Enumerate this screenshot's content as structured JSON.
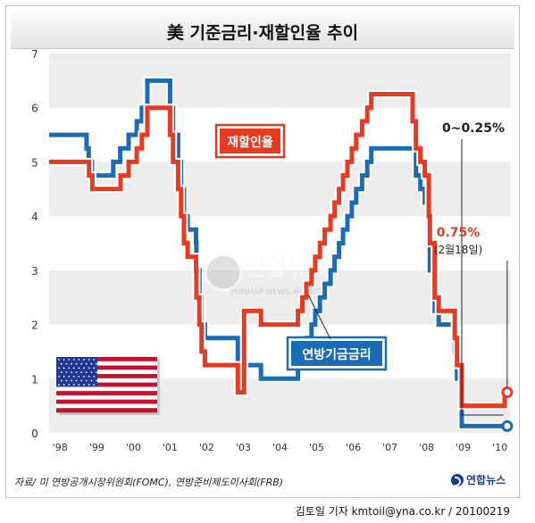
{
  "title": "美 기준금리·재할인율 추이",
  "chart_data": {
    "type": "line",
    "x_unit": "year",
    "xlim": [
      1997.7,
      2010.3
    ],
    "ylim": [
      0,
      7
    ],
    "grid": true,
    "x_tick_labels": [
      {
        "x": 1998,
        "label": "'98"
      },
      {
        "x": 1999,
        "label": "'99"
      },
      {
        "x": 2000,
        "label": "'00"
      },
      {
        "x": 2001,
        "label": "'01"
      },
      {
        "x": 2002,
        "label": "'02"
      },
      {
        "x": 2003,
        "label": "'03"
      },
      {
        "x": 2004,
        "label": "'04"
      },
      {
        "x": 2005,
        "label": "'05"
      },
      {
        "x": 2006,
        "label": "'06"
      },
      {
        "x": 2007,
        "label": "'07"
      },
      {
        "x": 2008,
        "label": "'08"
      },
      {
        "x": 2009,
        "label": "'09"
      },
      {
        "x": 2010,
        "label": "'10"
      }
    ],
    "y_ticks": [
      0,
      1,
      2,
      3,
      4,
      5,
      6,
      7
    ],
    "series": [
      {
        "name": "연방기금금리",
        "color": "#1c6bb5",
        "points": [
          [
            1997.7,
            5.5
          ],
          [
            1998.72,
            5.25
          ],
          [
            1998.78,
            5.0
          ],
          [
            1998.87,
            4.75
          ],
          [
            1999.45,
            5.0
          ],
          [
            1999.64,
            5.25
          ],
          [
            1999.87,
            5.5
          ],
          [
            2000.09,
            5.75
          ],
          [
            2000.23,
            6.0
          ],
          [
            2000.38,
            6.5
          ],
          [
            2001.0,
            6.0
          ],
          [
            2001.08,
            5.5
          ],
          [
            2001.22,
            5.0
          ],
          [
            2001.3,
            4.5
          ],
          [
            2001.38,
            4.0
          ],
          [
            2001.48,
            3.75
          ],
          [
            2001.71,
            3.5
          ],
          [
            2001.72,
            3.0
          ],
          [
            2001.8,
            2.5
          ],
          [
            2001.86,
            2.0
          ],
          [
            2001.95,
            1.75
          ],
          [
            2002.85,
            1.25
          ],
          [
            2003.48,
            1.0
          ],
          [
            2004.49,
            1.25
          ],
          [
            2004.61,
            1.5
          ],
          [
            2004.72,
            1.75
          ],
          [
            2004.86,
            2.0
          ],
          [
            2004.96,
            2.25
          ],
          [
            2005.09,
            2.5
          ],
          [
            2005.22,
            2.75
          ],
          [
            2005.38,
            3.0
          ],
          [
            2005.49,
            3.25
          ],
          [
            2005.61,
            3.5
          ],
          [
            2005.72,
            3.75
          ],
          [
            2005.84,
            4.0
          ],
          [
            2005.96,
            4.25
          ],
          [
            2006.08,
            4.5
          ],
          [
            2006.24,
            4.75
          ],
          [
            2006.38,
            5.0
          ],
          [
            2006.49,
            5.25
          ],
          [
            2007.71,
            4.75
          ],
          [
            2007.83,
            4.5
          ],
          [
            2007.95,
            4.25
          ],
          [
            2008.06,
            3.5
          ],
          [
            2008.09,
            3.0
          ],
          [
            2008.22,
            2.25
          ],
          [
            2008.33,
            2.0
          ],
          [
            2008.77,
            1.5
          ],
          [
            2008.83,
            1.0
          ],
          [
            2008.96,
            0.125
          ],
          [
            2010.2,
            0.125
          ]
        ]
      },
      {
        "name": "재할인율",
        "color": "#e63a21",
        "points": [
          [
            1997.7,
            5.0
          ],
          [
            1998.79,
            4.75
          ],
          [
            1998.88,
            4.5
          ],
          [
            1999.65,
            4.75
          ],
          [
            1999.87,
            5.0
          ],
          [
            2000.09,
            5.25
          ],
          [
            2000.23,
            5.5
          ],
          [
            2000.38,
            6.0
          ],
          [
            2001.0,
            5.5
          ],
          [
            2001.08,
            5.0
          ],
          [
            2001.22,
            4.5
          ],
          [
            2001.3,
            4.0
          ],
          [
            2001.38,
            3.5
          ],
          [
            2001.48,
            3.25
          ],
          [
            2001.71,
            3.0
          ],
          [
            2001.72,
            2.5
          ],
          [
            2001.8,
            2.0
          ],
          [
            2001.86,
            1.5
          ],
          [
            2001.95,
            1.25
          ],
          [
            2002.85,
            0.75
          ],
          [
            2003.02,
            2.25
          ],
          [
            2003.48,
            2.0
          ],
          [
            2004.49,
            2.25
          ],
          [
            2004.61,
            2.5
          ],
          [
            2004.72,
            2.75
          ],
          [
            2004.86,
            3.0
          ],
          [
            2004.96,
            3.25
          ],
          [
            2005.09,
            3.5
          ],
          [
            2005.22,
            3.75
          ],
          [
            2005.38,
            4.0
          ],
          [
            2005.49,
            4.25
          ],
          [
            2005.61,
            4.5
          ],
          [
            2005.72,
            4.75
          ],
          [
            2005.84,
            5.0
          ],
          [
            2005.96,
            5.25
          ],
          [
            2006.08,
            5.5
          ],
          [
            2006.24,
            5.75
          ],
          [
            2006.38,
            6.0
          ],
          [
            2006.49,
            6.25
          ],
          [
            2007.62,
            5.75
          ],
          [
            2007.71,
            5.25
          ],
          [
            2007.83,
            5.0
          ],
          [
            2007.95,
            4.75
          ],
          [
            2008.06,
            4.0
          ],
          [
            2008.09,
            3.5
          ],
          [
            2008.22,
            2.5
          ],
          [
            2008.33,
            2.25
          ],
          [
            2008.77,
            1.75
          ],
          [
            2008.83,
            1.25
          ],
          [
            2008.96,
            0.5
          ],
          [
            2010.13,
            0.75
          ],
          [
            2010.2,
            0.75
          ]
        ]
      }
    ],
    "annotations": {
      "fed_label": "연방기금금리",
      "discount_label": "재할인율",
      "fed_end_text": "0~0.25%",
      "discount_end_text": "0.75%",
      "discount_end_date": "(2월18일)"
    }
  },
  "source_text": "자료/ 미 연방공개시장위원회(FOMC), 연방준비제도이사회(FRB)",
  "brand": "연합뉴스",
  "watermark": {
    "main": "연합뉴스",
    "sub": "YONHAP NEWS AGENCY"
  },
  "credit": "김토일 기자 kmtoil@yna.co.kr / 20100219"
}
